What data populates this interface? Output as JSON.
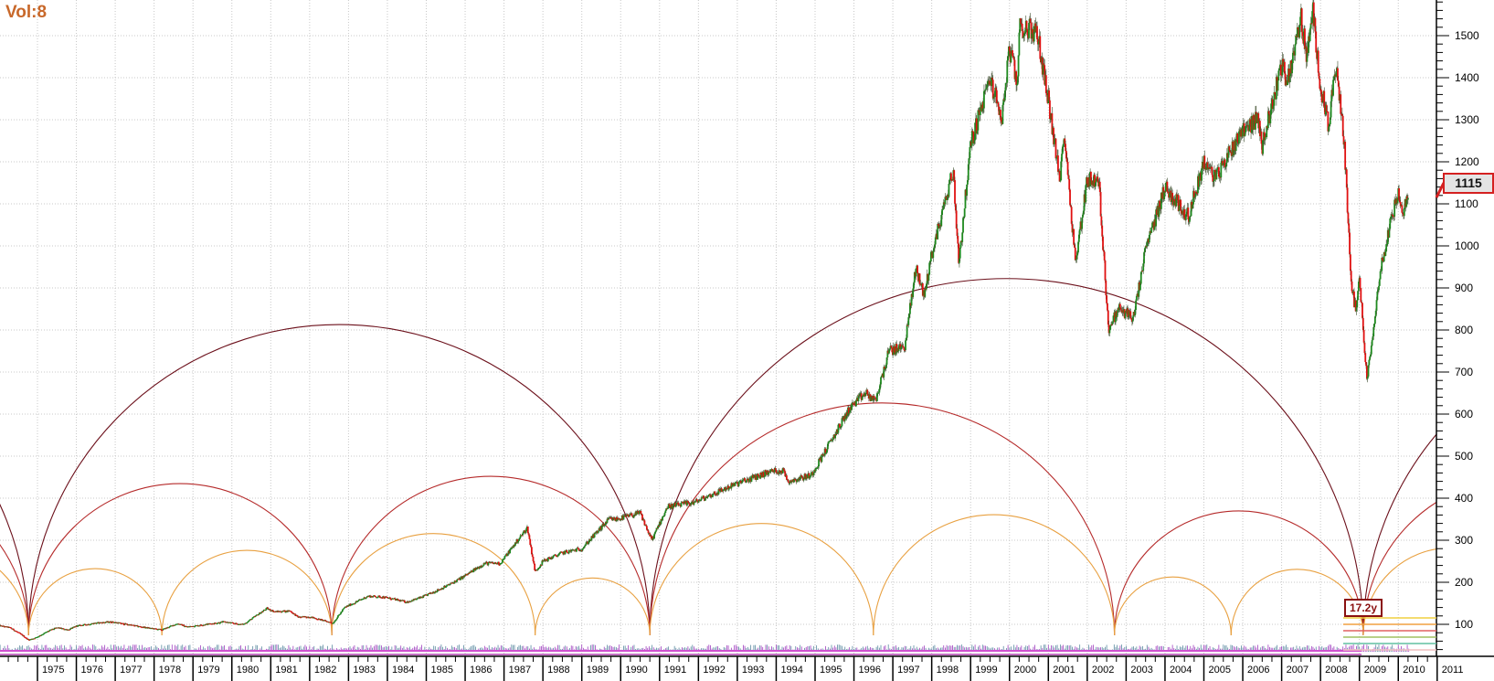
{
  "header": {
    "title": "Vol:8"
  },
  "price_label": "1115",
  "cycle_label": "17.2y",
  "colors": {
    "up": "#1f8a1f",
    "down": "#e01010",
    "wick": "#3a4a2a",
    "cycle_long": "#6b0f1a",
    "cycle_mid": "#b52a2a",
    "cycle_short": "#e8a040",
    "grid": "#c8c8c8",
    "volume": "#a040c0",
    "price_box_border": "#d42020"
  },
  "chart_data": {
    "type": "candlestick",
    "title": "Vol:8",
    "xlabel": "",
    "ylabel": "",
    "ylim": [
      40,
      1600
    ],
    "xlim": [
      1974.0,
      2011.0
    ],
    "grid": true,
    "y_ticks": [
      "100",
      "200",
      "300",
      "400",
      "500",
      "600",
      "700",
      "800",
      "900",
      "1000",
      "1100",
      "1200",
      "1300",
      "1400",
      "1500"
    ],
    "y_tick_values": [
      100,
      200,
      300,
      400,
      500,
      600,
      700,
      800,
      900,
      1000,
      1100,
      1200,
      1300,
      1400,
      1500
    ],
    "x_tick_labels": [
      "1975",
      "1976",
      "1977",
      "1978",
      "1979",
      "1980",
      "1981",
      "1982",
      "1983",
      "1984",
      "1985",
      "1986",
      "1987",
      "1988",
      "1989",
      "1990",
      "1991",
      "1992",
      "1993",
      "1994",
      "1995",
      "1996",
      "1997",
      "1998",
      "1999",
      "2000",
      "2001",
      "2002",
      "2003",
      "2004",
      "2005",
      "2006",
      "2007",
      "2008",
      "2009",
      "2010",
      "2011"
    ],
    "last_price": 1115,
    "price_keypoints": [
      [
        1974.0,
        97
      ],
      [
        1974.3,
        92
      ],
      [
        1974.6,
        75
      ],
      [
        1974.77,
        63
      ],
      [
        1974.95,
        68
      ],
      [
        1975.3,
        85
      ],
      [
        1975.5,
        92
      ],
      [
        1975.8,
        87
      ],
      [
        1976.0,
        96
      ],
      [
        1976.5,
        103
      ],
      [
        1976.9,
        106
      ],
      [
        1977.3,
        100
      ],
      [
        1977.8,
        92
      ],
      [
        1978.2,
        87
      ],
      [
        1978.6,
        102
      ],
      [
        1978.85,
        94
      ],
      [
        1979.5,
        102
      ],
      [
        1979.8,
        106
      ],
      [
        1980.2,
        100
      ],
      [
        1980.3,
        100
      ],
      [
        1980.9,
        138
      ],
      [
        1981.1,
        130
      ],
      [
        1981.5,
        132
      ],
      [
        1981.7,
        117
      ],
      [
        1982.0,
        118
      ],
      [
        1982.6,
        103
      ],
      [
        1982.9,
        140
      ],
      [
        1983.5,
        167
      ],
      [
        1983.9,
        165
      ],
      [
        1984.5,
        153
      ],
      [
        1984.9,
        165
      ],
      [
        1985.5,
        190
      ],
      [
        1985.9,
        210
      ],
      [
        1986.5,
        245
      ],
      [
        1986.9,
        245
      ],
      [
        1987.6,
        330
      ],
      [
        1987.8,
        225
      ],
      [
        1988.0,
        250
      ],
      [
        1988.5,
        270
      ],
      [
        1989.0,
        280
      ],
      [
        1989.7,
        350
      ],
      [
        1989.9,
        350
      ],
      [
        1990.5,
        365
      ],
      [
        1990.8,
        300
      ],
      [
        1991.2,
        380
      ],
      [
        1991.9,
        390
      ],
      [
        1992.5,
        415
      ],
      [
        1993.0,
        435
      ],
      [
        1993.9,
        465
      ],
      [
        1994.2,
        465
      ],
      [
        1994.3,
        440
      ],
      [
        1994.9,
        455
      ],
      [
        1995.5,
        550
      ],
      [
        1995.9,
        615
      ],
      [
        1996.3,
        650
      ],
      [
        1996.55,
        630
      ],
      [
        1996.9,
        750
      ],
      [
        1997.3,
        760
      ],
      [
        1997.6,
        950
      ],
      [
        1997.8,
        880
      ],
      [
        1998.0,
        980
      ],
      [
        1998.55,
        1180
      ],
      [
        1998.7,
        960
      ],
      [
        1999.0,
        1240
      ],
      [
        1999.5,
        1400
      ],
      [
        1999.8,
        1300
      ],
      [
        2000.0,
        1470
      ],
      [
        2000.2,
        1380
      ],
      [
        2000.25,
        1520
      ],
      [
        2000.7,
        1510
      ],
      [
        2001.0,
        1350
      ],
      [
        2001.3,
        1150
      ],
      [
        2001.4,
        1280
      ],
      [
        2001.7,
        960
      ],
      [
        2002.0,
        1160
      ],
      [
        2002.3,
        1150
      ],
      [
        2002.55,
        800
      ],
      [
        2002.8,
        850
      ],
      [
        2003.2,
        830
      ],
      [
        2003.5,
        990
      ],
      [
        2004.0,
        1140
      ],
      [
        2004.6,
        1070
      ],
      [
        2005.0,
        1200
      ],
      [
        2005.3,
        1160
      ],
      [
        2006.0,
        1280
      ],
      [
        2006.4,
        1300
      ],
      [
        2006.5,
        1240
      ],
      [
        2007.0,
        1430
      ],
      [
        2007.15,
        1390
      ],
      [
        2007.5,
        1540
      ],
      [
        2007.65,
        1450
      ],
      [
        2007.8,
        1560
      ],
      [
        2008.0,
        1380
      ],
      [
        2008.2,
        1290
      ],
      [
        2008.4,
        1420
      ],
      [
        2008.6,
        1260
      ],
      [
        2008.8,
        900
      ],
      [
        2008.9,
        850
      ],
      [
        2009.0,
        920
      ],
      [
        2009.2,
        680
      ],
      [
        2009.5,
        920
      ],
      [
        2009.8,
        1060
      ],
      [
        2010.0,
        1120
      ],
      [
        2010.1,
        1070
      ],
      [
        2010.25,
        1115
      ]
    ],
    "cycles": [
      {
        "name": "long",
        "period_years": 16.07,
        "lows": [
          1974.77,
          1990.75,
          2009.1
        ]
      },
      {
        "name": "mid",
        "period_years": 8.1,
        "lows": [
          1974.77,
          1982.57,
          1990.75,
          2002.7,
          2009.1
        ]
      },
      {
        "name": "short",
        "period_years": 4.5,
        "lows": [
          1974.77,
          1978.2,
          1982.57,
          1987.8,
          1990.75,
          1996.5,
          2002.7,
          2005.7,
          2009.1
        ]
      }
    ]
  }
}
